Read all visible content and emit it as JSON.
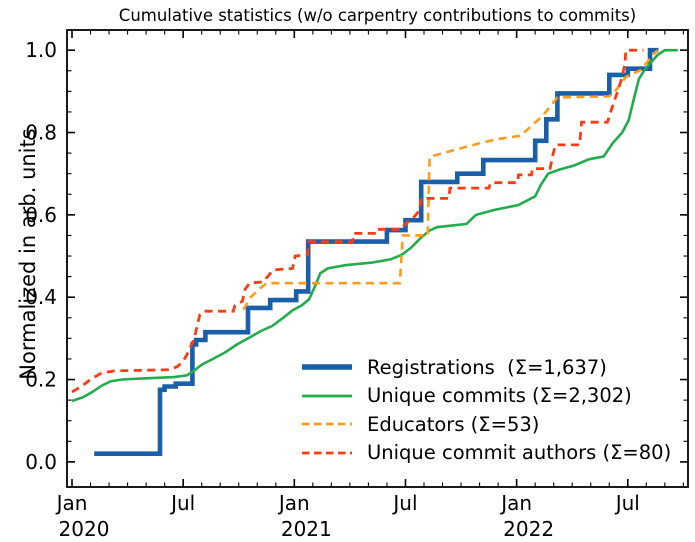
{
  "figure": {
    "background": "#ffffff"
  },
  "chart_data": {
    "type": "line",
    "title": "Cumulative statistics (w/o carpentry contributions to commits)",
    "xlabel": "",
    "ylabel": "Normalized in arb. units",
    "grid": false,
    "legend_position": "lower-right-inside",
    "axes_color": "#000000",
    "x_unit": "months since 2020-01",
    "xlim": [
      -0.27,
      33.25
    ],
    "ylim": [
      -0.061,
      1.049
    ],
    "x_major_ticks": [
      {
        "m": 0,
        "label": "Jan",
        "year": "2020"
      },
      {
        "m": 6,
        "label": "Jul",
        "year": ""
      },
      {
        "m": 12,
        "label": "Jan",
        "year": "2021"
      },
      {
        "m": 18,
        "label": "Jul",
        "year": ""
      },
      {
        "m": 24,
        "label": "Jan",
        "year": "2022"
      },
      {
        "m": 30,
        "label": "Jul",
        "year": ""
      }
    ],
    "x_minor_step_months": 1,
    "y_major_ticks": [
      {
        "v": 0.0,
        "label": "0.0"
      },
      {
        "v": 0.2,
        "label": "0.2"
      },
      {
        "v": 0.4,
        "label": "0.4"
      },
      {
        "v": 0.6,
        "label": "0.6"
      },
      {
        "v": 0.8,
        "label": "0.8"
      },
      {
        "v": 1.0,
        "label": "1.0"
      }
    ],
    "y_minor_step": 0.05,
    "series": [
      {
        "name": "registrations",
        "legend_label": "Registrations  (Σ=1,637)",
        "total": 1637,
        "color": "#1a5fa8",
        "width": 4.6,
        "legend_width": 5.5,
        "dash": null,
        "points": [
          [
            1.2,
            0.02
          ],
          [
            4.75,
            0.02
          ],
          [
            4.75,
            0.175
          ],
          [
            5.0,
            0.175
          ],
          [
            5.0,
            0.183
          ],
          [
            5.6,
            0.183
          ],
          [
            5.6,
            0.19
          ],
          [
            6.5,
            0.19
          ],
          [
            6.5,
            0.285
          ],
          [
            6.7,
            0.285
          ],
          [
            6.7,
            0.296
          ],
          [
            7.2,
            0.296
          ],
          [
            7.2,
            0.315
          ],
          [
            9.5,
            0.315
          ],
          [
            9.5,
            0.374
          ],
          [
            10.7,
            0.374
          ],
          [
            10.7,
            0.393
          ],
          [
            12.1,
            0.393
          ],
          [
            12.1,
            0.414
          ],
          [
            12.75,
            0.414
          ],
          [
            12.75,
            0.535
          ],
          [
            17.0,
            0.535
          ],
          [
            17.0,
            0.563
          ],
          [
            18.0,
            0.563
          ],
          [
            18.0,
            0.587
          ],
          [
            18.85,
            0.587
          ],
          [
            18.85,
            0.68
          ],
          [
            20.8,
            0.68
          ],
          [
            20.8,
            0.7
          ],
          [
            22.2,
            0.7
          ],
          [
            22.2,
            0.733
          ],
          [
            25.0,
            0.733
          ],
          [
            25.0,
            0.78
          ],
          [
            25.6,
            0.78
          ],
          [
            25.6,
            0.832
          ],
          [
            26.2,
            0.832
          ],
          [
            26.2,
            0.895
          ],
          [
            29.0,
            0.895
          ],
          [
            29.0,
            0.94
          ],
          [
            30.0,
            0.94
          ],
          [
            30.0,
            0.955
          ],
          [
            31.2,
            0.955
          ],
          [
            31.2,
            1.0
          ],
          [
            31.65,
            1.0
          ]
        ]
      },
      {
        "name": "unique-commits",
        "legend_label": "Unique commits (Σ=2,302)",
        "total": 2302,
        "color": "#22ac4e",
        "width": 2.6,
        "legend_width": 2.8,
        "dash": null,
        "points": [
          [
            0,
            0.148
          ],
          [
            0.6,
            0.157
          ],
          [
            1.1,
            0.17
          ],
          [
            1.6,
            0.185
          ],
          [
            2.1,
            0.196
          ],
          [
            2.7,
            0.2
          ],
          [
            4.0,
            0.203
          ],
          [
            5.5,
            0.206
          ],
          [
            6.2,
            0.21
          ],
          [
            6.6,
            0.222
          ],
          [
            7.0,
            0.236
          ],
          [
            7.6,
            0.25
          ],
          [
            8.3,
            0.267
          ],
          [
            8.9,
            0.285
          ],
          [
            9.5,
            0.3
          ],
          [
            10.2,
            0.318
          ],
          [
            10.8,
            0.33
          ],
          [
            11.4,
            0.35
          ],
          [
            11.9,
            0.368
          ],
          [
            12.4,
            0.38
          ],
          [
            12.8,
            0.395
          ],
          [
            13.1,
            0.425
          ],
          [
            13.4,
            0.458
          ],
          [
            13.8,
            0.47
          ],
          [
            14.8,
            0.478
          ],
          [
            16.2,
            0.484
          ],
          [
            17.2,
            0.492
          ],
          [
            17.8,
            0.503
          ],
          [
            18.3,
            0.52
          ],
          [
            18.8,
            0.543
          ],
          [
            19.3,
            0.562
          ],
          [
            19.7,
            0.57
          ],
          [
            21.3,
            0.578
          ],
          [
            21.8,
            0.6
          ],
          [
            22.8,
            0.612
          ],
          [
            24.1,
            0.624
          ],
          [
            25.0,
            0.645
          ],
          [
            25.3,
            0.672
          ],
          [
            25.7,
            0.7
          ],
          [
            26.3,
            0.71
          ],
          [
            27.1,
            0.72
          ],
          [
            27.9,
            0.735
          ],
          [
            28.7,
            0.742
          ],
          [
            29.2,
            0.775
          ],
          [
            29.7,
            0.8
          ],
          [
            30.05,
            0.83
          ],
          [
            30.35,
            0.886
          ],
          [
            30.6,
            0.93
          ],
          [
            30.9,
            0.952
          ],
          [
            31.6,
            0.988
          ],
          [
            32.0,
            1.0
          ],
          [
            32.7,
            1.0
          ]
        ]
      },
      {
        "name": "educators",
        "legend_label": "Educators (Σ=53)",
        "total": 53,
        "color": "#ff9a1a",
        "width": 2.6,
        "legend_width": 2.8,
        "dash": "8,5.5",
        "points": [
          [
            9.25,
            0.37
          ],
          [
            9.6,
            0.398
          ],
          [
            10.1,
            0.42
          ],
          [
            10.5,
            0.434
          ],
          [
            17.7,
            0.434
          ],
          [
            17.85,
            0.55
          ],
          [
            19.2,
            0.55
          ],
          [
            19.3,
            0.74
          ],
          [
            19.6,
            0.745
          ],
          [
            21.0,
            0.762
          ],
          [
            22.1,
            0.775
          ],
          [
            23.1,
            0.785
          ],
          [
            24.2,
            0.792
          ],
          [
            25.4,
            0.84
          ],
          [
            26.2,
            0.885
          ],
          [
            29.0,
            0.888
          ],
          [
            29.4,
            0.905
          ],
          [
            29.9,
            0.935
          ],
          [
            30.7,
            0.952
          ],
          [
            31.3,
            0.985
          ],
          [
            31.6,
            1.0
          ]
        ]
      },
      {
        "name": "unique-commit-authors",
        "legend_label": "Unique commit authors (Σ=80)",
        "total": 80,
        "color": "#fa3c14",
        "width": 2.8,
        "legend_width": 2.8,
        "dash": "8,5.5",
        "points": [
          [
            0,
            0.17
          ],
          [
            0.5,
            0.183
          ],
          [
            1.0,
            0.2
          ],
          [
            1.6,
            0.216
          ],
          [
            2.3,
            0.221
          ],
          [
            5.3,
            0.224
          ],
          [
            5.7,
            0.232
          ],
          [
            6.0,
            0.245
          ],
          [
            6.2,
            0.26
          ],
          [
            6.4,
            0.28
          ],
          [
            6.6,
            0.3
          ],
          [
            6.75,
            0.33
          ],
          [
            6.9,
            0.357
          ],
          [
            7.1,
            0.366
          ],
          [
            8.7,
            0.366
          ],
          [
            8.8,
            0.38
          ],
          [
            9.2,
            0.39
          ],
          [
            9.35,
            0.42
          ],
          [
            9.6,
            0.435
          ],
          [
            10.3,
            0.437
          ],
          [
            10.6,
            0.452
          ],
          [
            10.85,
            0.466
          ],
          [
            11.9,
            0.47
          ],
          [
            12.05,
            0.5
          ],
          [
            12.7,
            0.503
          ],
          [
            12.8,
            0.535
          ],
          [
            15.15,
            0.535
          ],
          [
            15.2,
            0.555
          ],
          [
            16.45,
            0.555
          ],
          [
            16.5,
            0.565
          ],
          [
            17.8,
            0.565
          ],
          [
            17.95,
            0.576
          ],
          [
            18.4,
            0.592
          ],
          [
            18.75,
            0.61
          ],
          [
            18.85,
            0.64
          ],
          [
            20.35,
            0.64
          ],
          [
            20.4,
            0.665
          ],
          [
            22.5,
            0.665
          ],
          [
            22.6,
            0.678
          ],
          [
            24.05,
            0.678
          ],
          [
            24.1,
            0.697
          ],
          [
            24.8,
            0.697
          ],
          [
            24.85,
            0.712
          ],
          [
            25.8,
            0.712
          ],
          [
            25.95,
            0.745
          ],
          [
            26.1,
            0.77
          ],
          [
            27.4,
            0.77
          ],
          [
            27.5,
            0.825
          ],
          [
            28.9,
            0.825
          ],
          [
            29.15,
            0.86
          ],
          [
            29.45,
            0.9
          ],
          [
            29.7,
            0.935
          ],
          [
            29.85,
            0.97
          ],
          [
            29.9,
            1.0
          ],
          [
            30.85,
            1.0
          ]
        ]
      }
    ]
  }
}
